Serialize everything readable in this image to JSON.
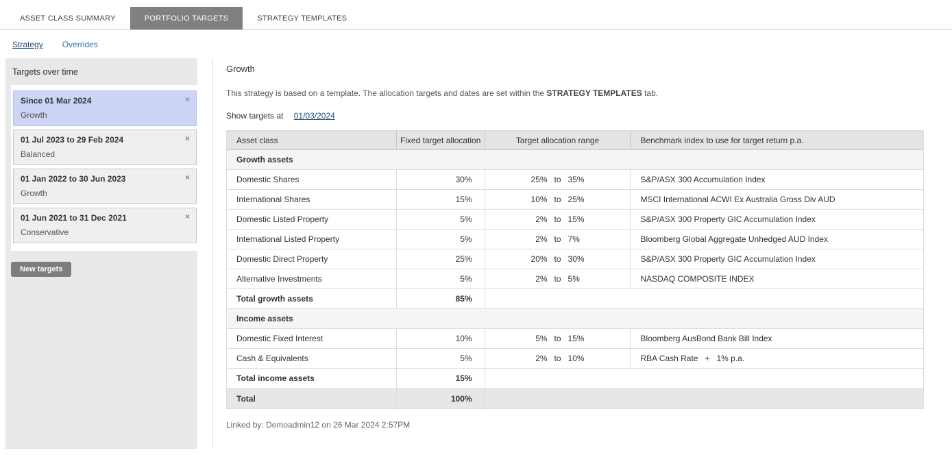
{
  "colors": {
    "active_tab_bg": "#808080",
    "selected_card_bg": "#cdd5f6",
    "link_dark": "#1f4e79",
    "link_light": "#2e75b6",
    "panel_bg": "#e9e9e9",
    "table_header_bg": "#e4e4e4",
    "grand_total_bg": "#e7e7e7"
  },
  "tabs": [
    {
      "label": "ASSET CLASS SUMMARY",
      "active": false
    },
    {
      "label": "PORTFOLIO TARGETS",
      "active": true
    },
    {
      "label": "STRATEGY TEMPLATES",
      "active": false
    }
  ],
  "subnav": [
    {
      "label": "Strategy",
      "active": true
    },
    {
      "label": "Overrides",
      "active": false
    }
  ],
  "sidebar": {
    "title": "Targets over time",
    "close_icon": "×",
    "items": [
      {
        "period": "Since 01 Mar 2024",
        "strategy": "Growth",
        "selected": true
      },
      {
        "period": "01 Jul 2023 to 29 Feb 2024",
        "strategy": "Balanced",
        "selected": false
      },
      {
        "period": "01 Jan 2022 to 30 Jun 2023",
        "strategy": "Growth",
        "selected": false
      },
      {
        "period": "01 Jun 2021 to 31 Dec 2021",
        "strategy": "Conservative",
        "selected": false
      }
    ],
    "new_targets_label": "New targets"
  },
  "main": {
    "title": "Growth",
    "description_prefix": "This strategy is based on a template. The allocation targets and dates are set within the ",
    "description_bold": "STRATEGY TEMPLATES",
    "description_suffix": " tab.",
    "show_targets_label": "Show targets at",
    "show_targets_date": "01/03/2024",
    "table": {
      "headers": [
        "Asset class",
        "Fixed target allocation",
        "Target allocation range",
        "Benchmark index to use for target return p.a."
      ],
      "range_to": "to",
      "sections": [
        {
          "label": "Growth assets",
          "rows": [
            {
              "asset": "Domestic Shares",
              "fixed": "30%",
              "range_min": "25%",
              "range_max": "35%",
              "benchmark": "S&P/ASX 300 Accumulation Index"
            },
            {
              "asset": "International Shares",
              "fixed": "15%",
              "range_min": "10%",
              "range_max": "25%",
              "benchmark": "MSCI International ACWI Ex Australia Gross Div AUD"
            },
            {
              "asset": "Domestic Listed Property",
              "fixed": "5%",
              "range_min": "2%",
              "range_max": "15%",
              "benchmark": "S&P/ASX 300 Property GIC Accumulation Index"
            },
            {
              "asset": "International Listed Property",
              "fixed": "5%",
              "range_min": "2%",
              "range_max": "7%",
              "benchmark": "Bloomberg Global Aggregate Unhedged AUD Index"
            },
            {
              "asset": "Domestic Direct Property",
              "fixed": "25%",
              "range_min": "20%",
              "range_max": "30%",
              "benchmark": "S&P/ASX 300 Property GIC Accumulation Index"
            },
            {
              "asset": "Alternative Investments",
              "fixed": "5%",
              "range_min": "2%",
              "range_max": "5%",
              "benchmark": "NASDAQ COMPOSITE INDEX"
            }
          ],
          "total_label": "Total growth assets",
          "total_value": "85%"
        },
        {
          "label": "Income assets",
          "rows": [
            {
              "asset": "Domestic Fixed Interest",
              "fixed": "10%",
              "range_min": "5%",
              "range_max": "15%",
              "benchmark": "Bloomberg AusBond Bank Bill Index"
            },
            {
              "asset": "Cash & Equivalents",
              "fixed": "5%",
              "range_min": "2%",
              "range_max": "10%",
              "benchmark": "RBA Cash Rate   +   1% p.a."
            }
          ],
          "total_label": "Total income assets",
          "total_value": "15%"
        }
      ],
      "grand_total_label": "Total",
      "grand_total_value": "100%"
    },
    "footer": "Linked by: Demoadmin12 on 26 Mar 2024 2:57PM"
  }
}
